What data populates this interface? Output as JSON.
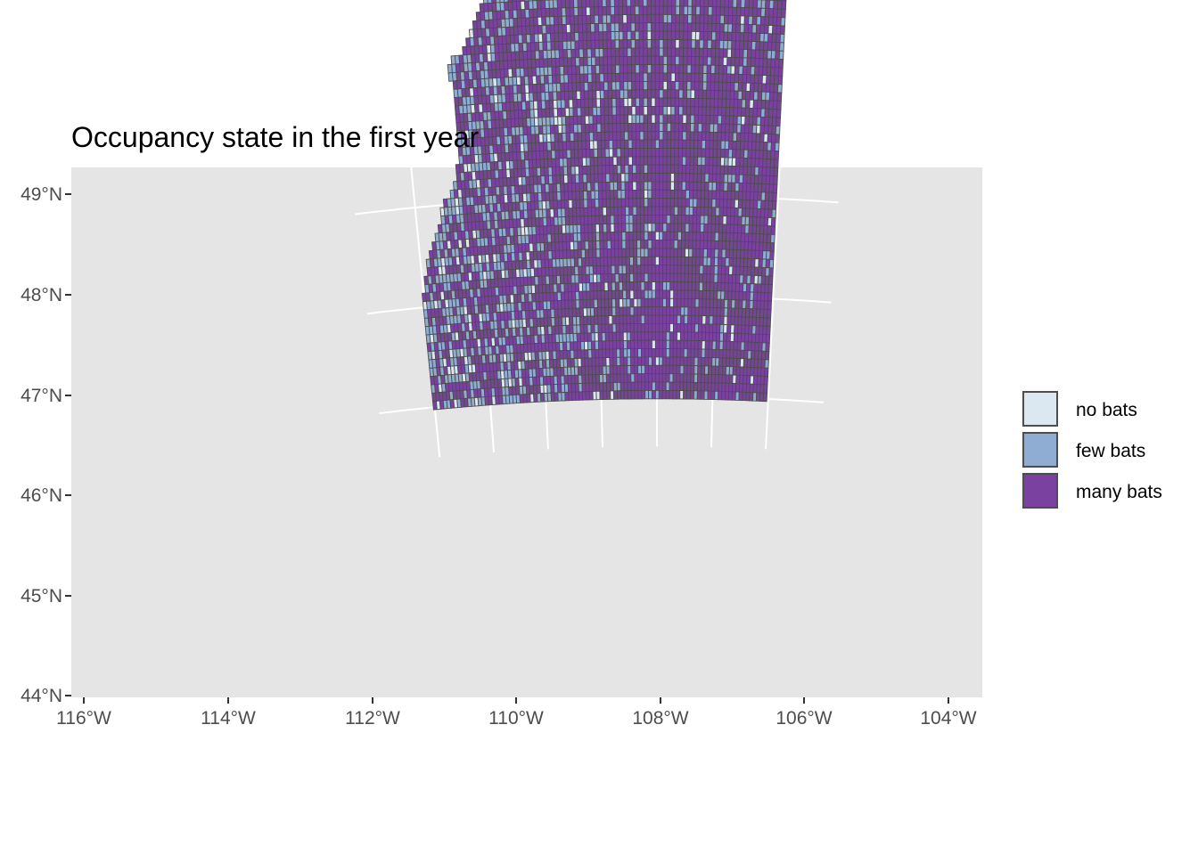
{
  "chart_data": {
    "type": "heatmap",
    "title": "Occupancy state in the first year",
    "xlabel": "",
    "ylabel": "",
    "lon_ticks": [
      "116°W",
      "114°W",
      "112°W",
      "110°W",
      "108°W",
      "106°W",
      "104°W"
    ],
    "lat_ticks": [
      "49°N",
      "48°N",
      "47°N",
      "46°N",
      "45°N",
      "44°N"
    ],
    "lon_range": [
      -116.2,
      -104.0
    ],
    "lat_range": [
      44.0,
      49.0
    ],
    "grid": true,
    "legend_position": "right",
    "categories": [
      "no bats",
      "few bats",
      "many bats"
    ],
    "colors": [
      "#dce8f1",
      "#8fadd3",
      "#7a41a0"
    ],
    "cell_outline_color": "#4d4d4d",
    "panel_background": "#e5e5e5",
    "category_shares": [
      0.06,
      0.27,
      0.67
    ]
  },
  "legend": {
    "items": [
      {
        "label": "no bats",
        "color": "#dce8f1"
      },
      {
        "label": "few bats",
        "color": "#8fadd3"
      },
      {
        "label": "many bats",
        "color": "#7a41a0"
      }
    ]
  }
}
